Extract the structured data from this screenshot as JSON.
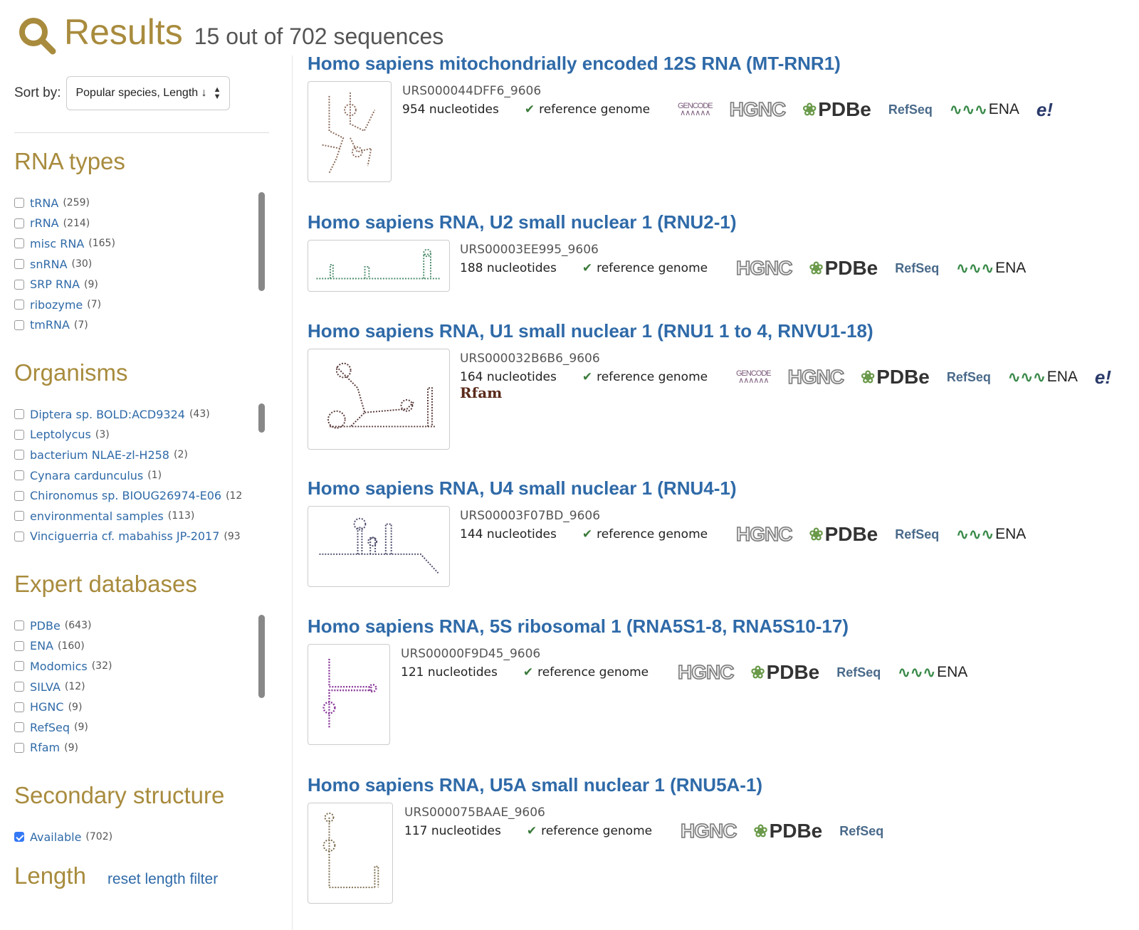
{
  "header": {
    "title": "Results",
    "subtitle": "15 out of 702 sequences",
    "icon": "search-icon"
  },
  "sort": {
    "label": "Sort by:",
    "value": "Popular species, Length ↓"
  },
  "facets": {
    "rna_types": {
      "title": "RNA types",
      "items": [
        {
          "label": "tRNA",
          "count": "(259)"
        },
        {
          "label": "rRNA",
          "count": "(214)"
        },
        {
          "label": "misc RNA",
          "count": "(165)"
        },
        {
          "label": "snRNA",
          "count": "(30)"
        },
        {
          "label": "SRP RNA",
          "count": "(9)"
        },
        {
          "label": "ribozyme",
          "count": "(7)"
        },
        {
          "label": "tmRNA",
          "count": "(7)"
        }
      ]
    },
    "organisms": {
      "title": "Organisms",
      "items": [
        {
          "label": "Diptera sp. BOLD:ACD9324",
          "count": "(43)"
        },
        {
          "label": "Leptolycus",
          "count": "(3)"
        },
        {
          "label": "bacterium NLAE-zl-H258",
          "count": "(2)"
        },
        {
          "label": "Cynara cardunculus",
          "count": "(1)"
        },
        {
          "label": "Chironomus sp. BIOUG26974-E06",
          "count": "(12"
        },
        {
          "label": "environmental samples",
          "count": "(113)"
        },
        {
          "label": "Vinciguerria cf. mabahiss JP-2017",
          "count": "(93"
        }
      ]
    },
    "expert_databases": {
      "title": "Expert databases",
      "items": [
        {
          "label": "PDBe",
          "count": "(643)"
        },
        {
          "label": "ENA",
          "count": "(160)"
        },
        {
          "label": "Modomics",
          "count": "(32)"
        },
        {
          "label": "SILVA",
          "count": "(12)"
        },
        {
          "label": "HGNC",
          "count": "(9)"
        },
        {
          "label": "RefSeq",
          "count": "(9)"
        },
        {
          "label": "Rfam",
          "count": "(9)"
        }
      ]
    },
    "secondary_structure": {
      "title": "Secondary structure",
      "items": [
        {
          "label": "Available",
          "count": "(702)",
          "checked": true
        }
      ]
    },
    "length": {
      "title": "Length",
      "reset_label": "reset length filter"
    }
  },
  "results": [
    {
      "title": "Homo sapiens mitochondrially encoded 12S RNA (MT-RNR1)",
      "urs": "URS000044DFF6_9606",
      "length": "954 nucleotides",
      "reference": "reference genome",
      "databases": [
        "GENCODE",
        "HGNC",
        "PDBe",
        "RefSeq",
        "ENA",
        "e!"
      ]
    },
    {
      "title": "Homo sapiens RNA, U2 small nuclear 1 (RNU2-1)",
      "urs": "URS00003EE995_9606",
      "length": "188 nucleotides",
      "reference": "reference genome",
      "databases": [
        "HGNC",
        "PDBe",
        "RefSeq",
        "ENA"
      ]
    },
    {
      "title": "Homo sapiens RNA, U1 small nuclear 1 (RNU1 1 to 4, RNVU1-18)",
      "urs": "URS000032B6B6_9606",
      "length": "164 nucleotides",
      "reference": "reference genome",
      "extra": "Rfam",
      "databases": [
        "GENCODE",
        "HGNC",
        "PDBe",
        "RefSeq",
        "ENA",
        "e!"
      ]
    },
    {
      "title": "Homo sapiens RNA, U4 small nuclear 1 (RNU4-1)",
      "urs": "URS00003F07BD_9606",
      "length": "144 nucleotides",
      "reference": "reference genome",
      "databases": [
        "HGNC",
        "PDBe",
        "RefSeq",
        "ENA"
      ]
    },
    {
      "title": "Homo sapiens RNA, 5S ribosomal 1 (RNA5S1-8, RNA5S10-17)",
      "urs": "URS00000F9D45_9606",
      "length": "121 nucleotides",
      "reference": "reference genome",
      "databases": [
        "HGNC",
        "PDBe",
        "RefSeq",
        "ENA"
      ]
    },
    {
      "title": "Homo sapiens RNA, U5A small nuclear 1 (RNU5A-1)",
      "urs": "URS000075BAAE_9606",
      "length": "117 nucleotides",
      "reference": "reference genome",
      "databases": [
        "HGNC",
        "PDBe",
        "RefSeq"
      ]
    }
  ]
}
